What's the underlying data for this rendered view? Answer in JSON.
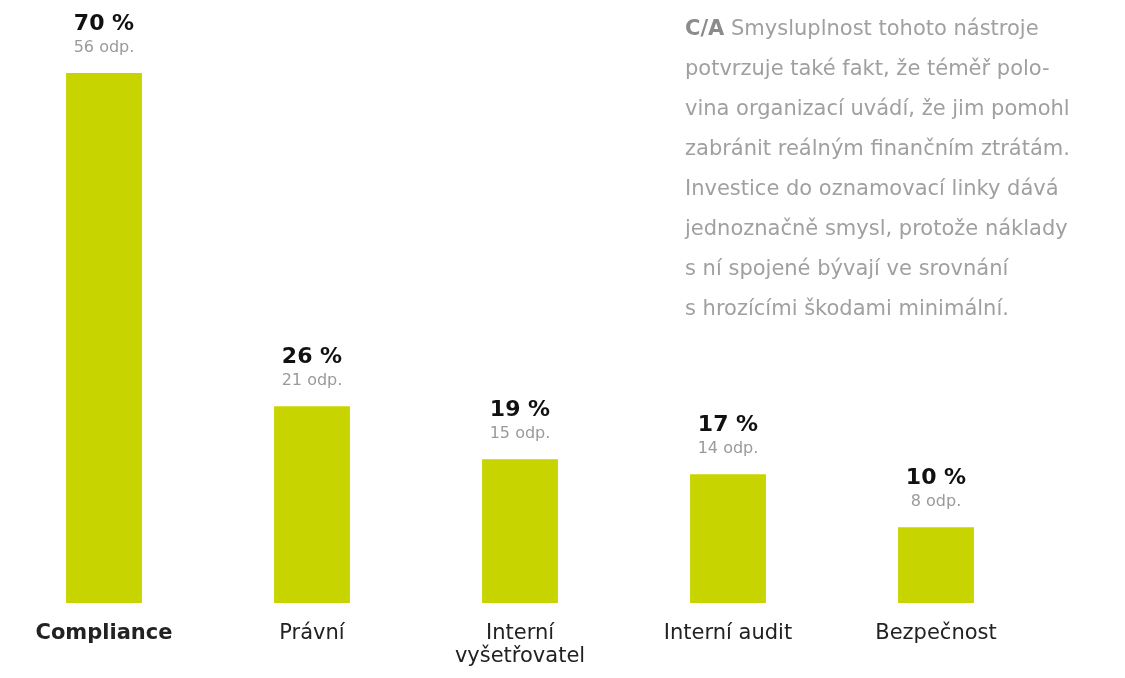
{
  "chart_data": {
    "type": "bar",
    "categories": [
      "Compliance",
      "Právní",
      "Interní vyšetřovatel",
      "Interní audit",
      "Bezpečnost"
    ],
    "values": [
      70,
      26,
      19,
      17,
      10
    ],
    "color": "#c8d400",
    "value_labels": [
      "70 %",
      "26 %",
      "19 %",
      "17 %",
      "10 %"
    ],
    "annotations": [
      {
        "text": "56 odp.",
        "x": "Compliance",
        "y": 70
      },
      {
        "text": "21 odp.",
        "x": "Právní",
        "y": 26
      },
      {
        "text": "15 odp.",
        "x": "Interní vyšetřovatel",
        "y": 19
      },
      {
        "text": "14 odp.",
        "x": "Interní audit",
        "y": 17
      },
      {
        "text": "8 odp.",
        "x": "Bezpečnost",
        "y": 10
      },
      "C/A Smysluplnost tohoto nástroje\npotvrzuje také fakt, že téměř polo-\nvina organizací uvádí, že jim pomohl\nzabránit reálným finančním ztrátám.\nInvestice do oznamovací linky dává\njednoznačně smysl, protože náklady\ns ní spojené bývají ve srovnání\ns hrozícími škodami minimální."
    ]
  }
}
